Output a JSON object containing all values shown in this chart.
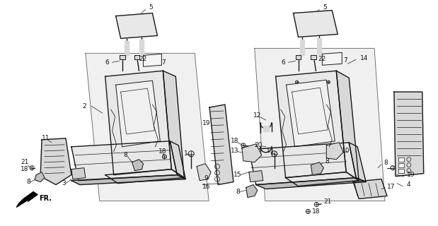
{
  "background_color": "#ffffff",
  "line_color": "#1a1a1a",
  "figsize": [
    6.19,
    3.2
  ],
  "dpi": 100
}
